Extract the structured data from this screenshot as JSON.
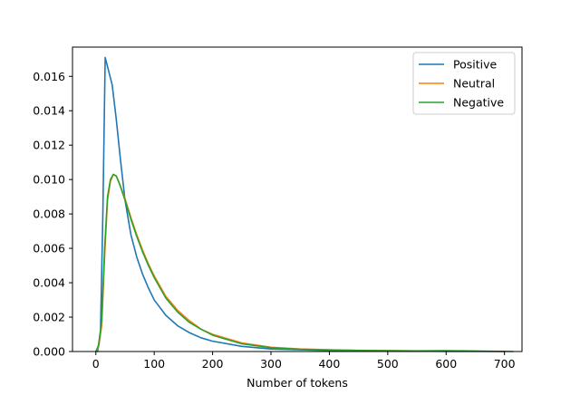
{
  "chart_data": {
    "type": "line",
    "title": "",
    "xlabel": "Number of tokens",
    "ylabel": "",
    "xlim": [
      -40,
      730
    ],
    "ylim": [
      0,
      0.0177
    ],
    "xticks": [
      0,
      100,
      200,
      300,
      400,
      500,
      600,
      700
    ],
    "xtick_labels": [
      "0",
      "100",
      "200",
      "300",
      "400",
      "500",
      "600",
      "700"
    ],
    "yticks": [
      0,
      0.002,
      0.004,
      0.006,
      0.008,
      0.01,
      0.012,
      0.014,
      0.016
    ],
    "ytick_labels": [
      "0.000",
      "0.002",
      "0.004",
      "0.006",
      "0.008",
      "0.010",
      "0.012",
      "0.014",
      "0.016"
    ],
    "grid": false,
    "legend_position": "top-right",
    "series": [
      {
        "name": "Positive",
        "color": "#1f77b4",
        "x": [
          3,
          8,
          12,
          16,
          22,
          28,
          35,
          42,
          50,
          60,
          70,
          80,
          90,
          100,
          120,
          140,
          160,
          180,
          200,
          250,
          300,
          350,
          400,
          450,
          500,
          550,
          600,
          650,
          700
        ],
        "y": [
          0.0,
          0.0012,
          0.008,
          0.0171,
          0.0163,
          0.0155,
          0.0135,
          0.0112,
          0.0088,
          0.0068,
          0.0055,
          0.0045,
          0.0037,
          0.003,
          0.0021,
          0.0015,
          0.0011,
          0.0008,
          0.0006,
          0.0003,
          0.00015,
          0.0001,
          6e-05,
          4e-05,
          3e-05,
          2e-05,
          1e-05,
          1e-05,
          0.0
        ]
      },
      {
        "name": "Neutral",
        "color": "#ff7f0e",
        "x": [
          0,
          5,
          10,
          15,
          20,
          25,
          30,
          35,
          40,
          50,
          60,
          70,
          80,
          90,
          100,
          120,
          140,
          160,
          180,
          200,
          250,
          300,
          350,
          400,
          450,
          500,
          550,
          600,
          650,
          700
        ],
        "y": [
          0.0,
          0.0003,
          0.0015,
          0.0055,
          0.0088,
          0.0099,
          0.0103,
          0.0102,
          0.0098,
          0.0089,
          0.0078,
          0.0068,
          0.0059,
          0.0051,
          0.0044,
          0.0032,
          0.0024,
          0.0018,
          0.0013,
          0.001,
          0.0005,
          0.00025,
          0.00015,
          0.0001,
          7e-05,
          5e-05,
          4e-05,
          3e-05,
          2e-05,
          0.0
        ]
      },
      {
        "name": "Negative",
        "color": "#2ca02c",
        "x": [
          0,
          5,
          10,
          15,
          20,
          25,
          30,
          35,
          40,
          50,
          60,
          70,
          80,
          90,
          100,
          120,
          140,
          160,
          180,
          200,
          250,
          300,
          350,
          400,
          450,
          500,
          550,
          600,
          650,
          715
        ],
        "y": [
          0.0,
          0.0004,
          0.0018,
          0.006,
          0.009,
          0.01,
          0.0103,
          0.0102,
          0.0098,
          0.0088,
          0.0077,
          0.0067,
          0.0058,
          0.005,
          0.0043,
          0.0031,
          0.0023,
          0.0017,
          0.0013,
          0.00095,
          0.00045,
          0.00022,
          0.00013,
          9e-05,
          6e-05,
          5e-05,
          4e-05,
          5e-05,
          3e-05,
          0.0
        ]
      }
    ]
  }
}
